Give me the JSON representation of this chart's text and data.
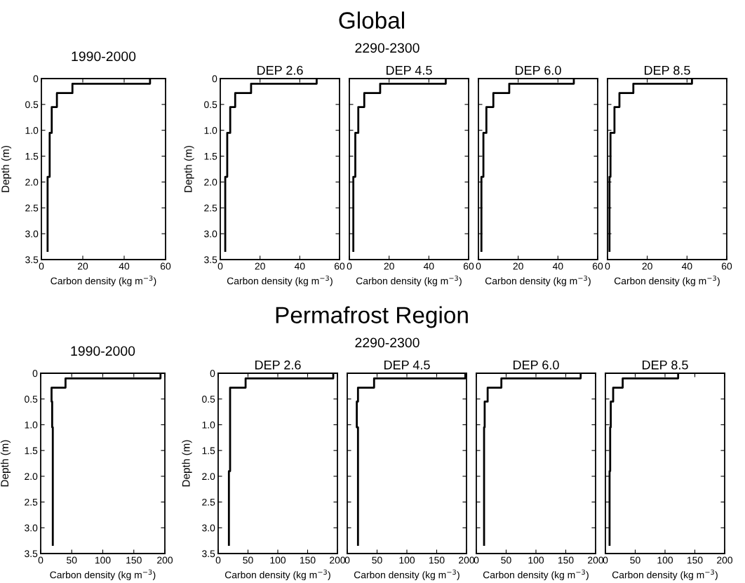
{
  "chart_data": [
    {
      "type": "line",
      "title": "1990-2000",
      "annotations": [
        "Global"
      ],
      "xlabel": "Carbon density (kg m$^{−3}$)",
      "ylabel": "Depth (m)",
      "xlim": [
        0,
        60
      ],
      "xticks": [
        0,
        20,
        40,
        60
      ],
      "ylim": [
        3.5,
        0
      ],
      "yticks": [
        0,
        {
          "value": 0.5,
          "label": "0.5"
        },
        {
          "value": 1,
          "label": "1.0"
        },
        {
          "value": 1.5,
          "label": "1.5"
        },
        {
          "value": 2,
          "label": "2.0"
        },
        {
          "value": 2.5,
          "label": "2.5"
        },
        {
          "value": 3,
          "label": "3.0"
        },
        {
          "value": 3.5,
          "label": "3.5"
        }
      ],
      "grid": false,
      "legend": false,
      "series": [
        {
          "color": "#000000",
          "x": [
            52.5,
            52.5,
            15,
            15,
            7.5,
            7.5,
            5,
            5,
            4,
            4,
            3,
            3
          ],
          "values": [
            0,
            0.1,
            0.1,
            0.28,
            0.28,
            0.55,
            0.55,
            1.05,
            1.05,
            1.9,
            1.9,
            3.35
          ]
        }
      ]
    },
    {
      "type": "line",
      "title": "DEP 2.6",
      "annotations": [
        "2290-2300"
      ],
      "xlabel": "Carbon density (kg m$^{−3}$)",
      "ylabel": "Depth (m)",
      "xlim": [
        0,
        60
      ],
      "xticks": [
        0,
        20,
        40,
        60
      ],
      "ylim": [
        3.5,
        0
      ],
      "yticks": [
        0,
        {
          "value": 0.5,
          "label": "0.5"
        },
        {
          "value": 1,
          "label": "1.0"
        },
        {
          "value": 1.5,
          "label": "1.5"
        },
        {
          "value": 2,
          "label": "2.0"
        },
        {
          "value": 2.5,
          "label": "2.5"
        },
        {
          "value": 3,
          "label": "3.0"
        },
        {
          "value": 3.5,
          "label": "3.5"
        }
      ],
      "grid": false,
      "legend": false,
      "series": [
        {
          "color": "#000000",
          "x": [
            48.5,
            48.5,
            15.5,
            15.5,
            7.5,
            7.5,
            5,
            5,
            3.5,
            3.5,
            2.5,
            2.5
          ],
          "values": [
            0,
            0.1,
            0.1,
            0.28,
            0.28,
            0.55,
            0.55,
            1.05,
            1.05,
            1.9,
            1.9,
            3.35
          ]
        }
      ]
    },
    {
      "type": "line",
      "title": "DEP 4.5",
      "xlabel": "Carbon density (kg m$^{−3}$)",
      "xlim": [
        0,
        60
      ],
      "xticks": [
        0,
        20,
        40,
        60
      ],
      "ylim": [
        3.5,
        0
      ],
      "yticks": [
        {
          "value": 0,
          "label": null
        },
        {
          "value": 0.5,
          "label": null
        },
        {
          "value": 1,
          "label": null
        },
        {
          "value": 1.5,
          "label": null
        },
        {
          "value": 2,
          "label": null
        },
        {
          "value": 2.5,
          "label": null
        },
        {
          "value": 3,
          "label": null
        },
        {
          "value": 3.5,
          "label": null
        }
      ],
      "tick_labels": "x",
      "grid": false,
      "legend": false,
      "series": [
        {
          "color": "#000000",
          "x": [
            48.5,
            48.5,
            15.5,
            15.5,
            7.5,
            7.5,
            4.5,
            4.5,
            3,
            3,
            2,
            2
          ],
          "values": [
            0,
            0.1,
            0.1,
            0.28,
            0.28,
            0.55,
            0.55,
            1.05,
            1.05,
            1.9,
            1.9,
            3.35
          ]
        }
      ]
    },
    {
      "type": "line",
      "title": "DEP 6.0",
      "xlabel": "Carbon density (kg m$^{−3}$)",
      "xlim": [
        0,
        60
      ],
      "xticks": [
        0,
        20,
        40,
        60
      ],
      "ylim": [
        3.5,
        0
      ],
      "yticks": [
        {
          "value": 0,
          "label": null
        },
        {
          "value": 0.5,
          "label": null
        },
        {
          "value": 1,
          "label": null
        },
        {
          "value": 1.5,
          "label": null
        },
        {
          "value": 2,
          "label": null
        },
        {
          "value": 2.5,
          "label": null
        },
        {
          "value": 3,
          "label": null
        },
        {
          "value": 3.5,
          "label": null
        }
      ],
      "tick_labels": "x",
      "grid": false,
      "legend": false,
      "series": [
        {
          "color": "#000000",
          "x": [
            48,
            48,
            15.5,
            15.5,
            7.5,
            7.5,
            4,
            4,
            2.5,
            2.5,
            1.5,
            1.5
          ],
          "values": [
            0,
            0.1,
            0.1,
            0.28,
            0.28,
            0.55,
            0.55,
            1.05,
            1.05,
            1.9,
            1.9,
            3.35
          ]
        }
      ]
    },
    {
      "type": "line",
      "title": "DEP 8.5",
      "xlabel": "Carbon density (kg m$^{−3}$)",
      "xlim": [
        0,
        60
      ],
      "xticks": [
        0,
        20,
        40,
        60
      ],
      "ylim": [
        3.5,
        0
      ],
      "yticks": [
        {
          "value": 0,
          "label": null
        },
        {
          "value": 0.5,
          "label": null
        },
        {
          "value": 1,
          "label": null
        },
        {
          "value": 1.5,
          "label": null
        },
        {
          "value": 2,
          "label": null
        },
        {
          "value": 2.5,
          "label": null
        },
        {
          "value": 3,
          "label": null
        },
        {
          "value": 3.5,
          "label": null
        }
      ],
      "tick_labels": "x",
      "grid": false,
      "legend": false,
      "series": [
        {
          "color": "#000000",
          "x": [
            42.5,
            42.5,
            13,
            13,
            6,
            6,
            3.5,
            3.5,
            1.5,
            1.5,
            1,
            1
          ],
          "values": [
            0,
            0.1,
            0.1,
            0.28,
            0.28,
            0.55,
            0.55,
            1.05,
            1.05,
            1.9,
            1.9,
            3.35
          ]
        }
      ]
    },
    {
      "type": "line",
      "title": "1990-2000",
      "annotations": [
        "Permafrost Region"
      ],
      "xlabel": "Carbon density (kg m$^{−3}$)",
      "ylabel": "Depth (m)",
      "xlim": [
        0,
        200
      ],
      "xticks": [
        0,
        50,
        100,
        150,
        200
      ],
      "ylim": [
        3.5,
        0
      ],
      "yticks": [
        0,
        {
          "value": 0.5,
          "label": "0.5"
        },
        {
          "value": 1,
          "label": "1.0"
        },
        {
          "value": 1.5,
          "label": "1.5"
        },
        {
          "value": 2,
          "label": "2.0"
        },
        {
          "value": 2.5,
          "label": "2.5"
        },
        {
          "value": 3,
          "label": "3.0"
        },
        {
          "value": 3.5,
          "label": "3.5"
        }
      ],
      "grid": false,
      "legend": false,
      "series": [
        {
          "color": "#000000",
          "x": [
            193,
            193,
            40,
            40,
            17.5,
            17.5,
            18.5,
            18.5,
            19.5,
            19.5,
            19.5,
            19.5
          ],
          "values": [
            0,
            0.1,
            0.1,
            0.28,
            0.28,
            0.55,
            0.55,
            1.05,
            1.05,
            1.9,
            1.9,
            3.35
          ]
        }
      ]
    },
    {
      "type": "line",
      "title": "DEP 2.6",
      "annotations": [
        "2290-2300"
      ],
      "xlabel": "Carbon density (kg m$^{−3}$)",
      "ylabel": "Depth (m)",
      "xlim": [
        0,
        200
      ],
      "xticks": [
        0,
        50,
        100,
        150,
        200
      ],
      "ylim": [
        3.5,
        0
      ],
      "yticks": [
        0,
        {
          "value": 0.5,
          "label": "0.5"
        },
        {
          "value": 1,
          "label": "1.0"
        },
        {
          "value": 1.5,
          "label": "1.5"
        },
        {
          "value": 2,
          "label": "2.0"
        },
        {
          "value": 2.5,
          "label": "2.5"
        },
        {
          "value": 3,
          "label": "3.0"
        },
        {
          "value": 3.5,
          "label": "3.5"
        }
      ],
      "grid": false,
      "legend": false,
      "series": [
        {
          "color": "#000000",
          "x": [
            193,
            193,
            46,
            46,
            20,
            20,
            20,
            20,
            20,
            20,
            18,
            18
          ],
          "values": [
            0,
            0.1,
            0.1,
            0.28,
            0.28,
            0.55,
            0.55,
            1.05,
            1.05,
            1.9,
            1.9,
            3.35
          ]
        }
      ]
    },
    {
      "type": "line",
      "title": "DEP 4.5",
      "xlabel": "Carbon density (kg m$^{−3}$)",
      "xlim": [
        0,
        200
      ],
      "xticks": [
        0,
        50,
        100,
        150,
        200
      ],
      "ylim": [
        3.5,
        0
      ],
      "yticks": [
        {
          "value": 0,
          "label": null
        },
        {
          "value": 0.5,
          "label": null
        },
        {
          "value": 1,
          "label": null
        },
        {
          "value": 1.5,
          "label": null
        },
        {
          "value": 2,
          "label": null
        },
        {
          "value": 2.5,
          "label": null
        },
        {
          "value": 3,
          "label": null
        },
        {
          "value": 3.5,
          "label": null
        }
      ],
      "tick_labels": "x",
      "grid": false,
      "legend": false,
      "series": [
        {
          "color": "#000000",
          "x": [
            198,
            198,
            45,
            45,
            18,
            18,
            16,
            16,
            18,
            18,
            18,
            18
          ],
          "values": [
            0,
            0.1,
            0.1,
            0.28,
            0.28,
            0.55,
            0.55,
            1.05,
            1.05,
            1.9,
            1.9,
            3.35
          ]
        }
      ]
    },
    {
      "type": "line",
      "title": "DEP 6.0",
      "xlabel": "Carbon density (kg m$^{−3}$)",
      "xlim": [
        0,
        200
      ],
      "xticks": [
        0,
        50,
        100,
        150,
        200
      ],
      "ylim": [
        3.5,
        0
      ],
      "yticks": [
        {
          "value": 0,
          "label": null
        },
        {
          "value": 0.5,
          "label": null
        },
        {
          "value": 1,
          "label": null
        },
        {
          "value": 1.5,
          "label": null
        },
        {
          "value": 2,
          "label": null
        },
        {
          "value": 2.5,
          "label": null
        },
        {
          "value": 3,
          "label": null
        },
        {
          "value": 3.5,
          "label": null
        }
      ],
      "tick_labels": "x",
      "grid": false,
      "legend": false,
      "series": [
        {
          "color": "#000000",
          "x": [
            175,
            175,
            42,
            42,
            19,
            19,
            14,
            14,
            13,
            13,
            13,
            13
          ],
          "values": [
            0,
            0.1,
            0.1,
            0.28,
            0.28,
            0.55,
            0.55,
            1.05,
            1.05,
            1.9,
            1.9,
            3.35
          ]
        }
      ]
    },
    {
      "type": "line",
      "title": "DEP 8.5",
      "xlabel": "Carbon density (kg m$^{−3}$)",
      "xlim": [
        0,
        200
      ],
      "xticks": [
        0,
        50,
        100,
        150,
        200
      ],
      "ylim": [
        3.5,
        0
      ],
      "yticks": [
        {
          "value": 0,
          "label": null
        },
        {
          "value": 0.5,
          "label": null
        },
        {
          "value": 1,
          "label": null
        },
        {
          "value": 1.5,
          "label": null
        },
        {
          "value": 2,
          "label": null
        },
        {
          "value": 2.5,
          "label": null
        },
        {
          "value": 3,
          "label": null
        },
        {
          "value": 3.5,
          "label": null
        }
      ],
      "tick_labels": "x",
      "grid": false,
      "legend": false,
      "series": [
        {
          "color": "#000000",
          "x": [
            122,
            122,
            29,
            29,
            13,
            13,
            9,
            9,
            8,
            8,
            7,
            7
          ],
          "values": [
            0,
            0.1,
            0.1,
            0.28,
            0.28,
            0.55,
            0.55,
            1.05,
            1.05,
            1.9,
            1.9,
            3.35
          ]
        }
      ]
    }
  ]
}
